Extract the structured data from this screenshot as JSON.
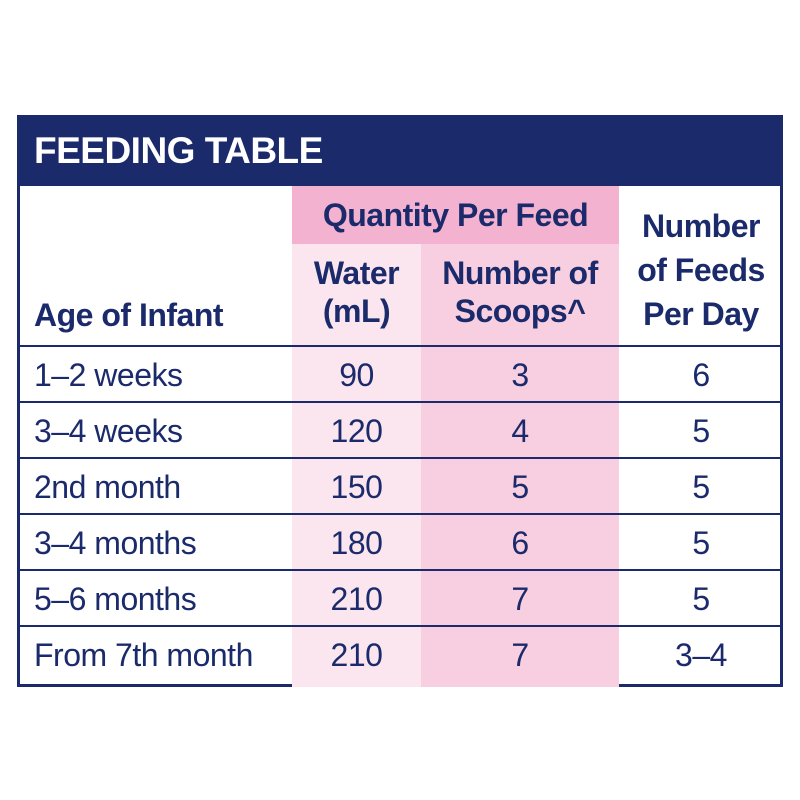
{
  "title": "FEEDING TABLE",
  "headers": {
    "quantity_per_feed": "Quantity Per Feed",
    "water_line1": "Water",
    "water_line2": "(mL)",
    "scoops_line1": "Number of",
    "scoops_line2": "Scoops^",
    "feeds_line1": "Number",
    "feeds_line2": "of Feeds",
    "feeds_line3": "Per Day",
    "age": "Age of Infant"
  },
  "rows": [
    {
      "age": "1–2 weeks",
      "water": "90",
      "scoops": "3",
      "feeds": "6"
    },
    {
      "age": "3–4 weeks",
      "water": "120",
      "scoops": "4",
      "feeds": "5"
    },
    {
      "age": "2nd month",
      "water": "150",
      "scoops": "5",
      "feeds": "5"
    },
    {
      "age": "3–4 months",
      "water": "180",
      "scoops": "6",
      "feeds": "5"
    },
    {
      "age": "5–6 months",
      "water": "210",
      "scoops": "7",
      "feeds": "5"
    },
    {
      "age": "From 7th month",
      "water": "210",
      "scoops": "7",
      "feeds": "3–4"
    }
  ],
  "colors": {
    "navy": "#1b2a6b",
    "pink_header": "#f2b2d0",
    "pink_water": "#fbe6ef",
    "pink_scoops": "#f7cfe0"
  }
}
